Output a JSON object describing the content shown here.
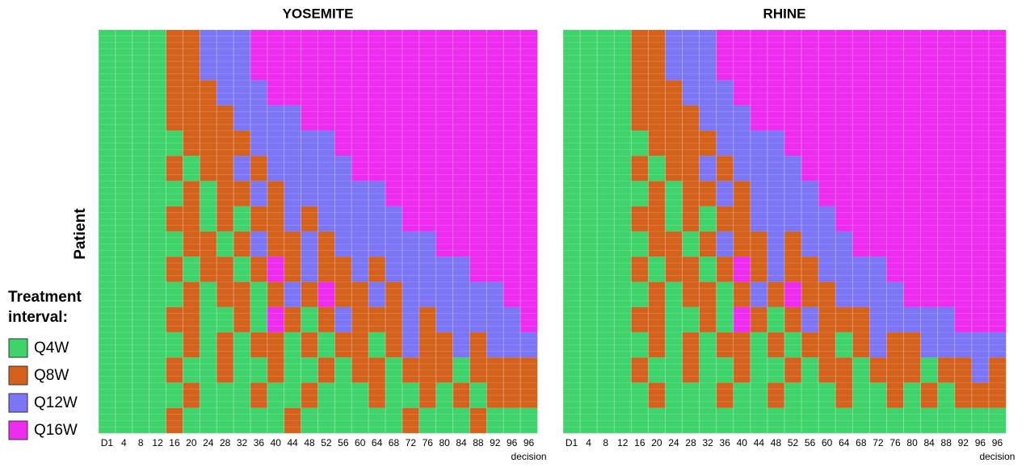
{
  "chart_data": [
    {
      "type": "heatmap",
      "title": "YOSEMITE",
      "y_label": "Patient",
      "x_categories": [
        "D1",
        "4",
        "8",
        "12",
        "16",
        "20",
        "24",
        "28",
        "32",
        "36",
        "40",
        "44",
        "48",
        "52",
        "56",
        "60",
        "64",
        "68",
        "72",
        "76",
        "80",
        "84",
        "88",
        "92",
        "96",
        "96"
      ],
      "x_note": "decision",
      "rows": [
        [
          0,
          0,
          0,
          0,
          1,
          1,
          2,
          2,
          2,
          3,
          3,
          3,
          3,
          3,
          3,
          3,
          3,
          3,
          3,
          3,
          3,
          3,
          3,
          3,
          3,
          3
        ],
        [
          0,
          0,
          0,
          0,
          1,
          1,
          2,
          2,
          2,
          3,
          3,
          3,
          3,
          3,
          3,
          3,
          3,
          3,
          3,
          3,
          3,
          3,
          3,
          3,
          3,
          3
        ],
        [
          0,
          0,
          0,
          0,
          1,
          1,
          1,
          2,
          2,
          2,
          3,
          3,
          3,
          3,
          3,
          3,
          3,
          3,
          3,
          3,
          3,
          3,
          3,
          3,
          3,
          3
        ],
        [
          0,
          0,
          0,
          0,
          1,
          1,
          1,
          1,
          2,
          2,
          2,
          2,
          3,
          3,
          3,
          3,
          3,
          3,
          3,
          3,
          3,
          3,
          3,
          3,
          3,
          3
        ],
        [
          0,
          0,
          0,
          0,
          0,
          1,
          1,
          1,
          1,
          2,
          2,
          2,
          2,
          2,
          3,
          3,
          3,
          3,
          3,
          3,
          3,
          3,
          3,
          3,
          3,
          3
        ],
        [
          0,
          0,
          0,
          0,
          1,
          0,
          1,
          1,
          2,
          1,
          2,
          2,
          2,
          2,
          2,
          3,
          3,
          3,
          3,
          3,
          3,
          3,
          3,
          3,
          3,
          3
        ],
        [
          0,
          0,
          0,
          0,
          0,
          1,
          0,
          1,
          1,
          2,
          1,
          2,
          2,
          2,
          2,
          2,
          2,
          3,
          3,
          3,
          3,
          3,
          3,
          3,
          3,
          3
        ],
        [
          0,
          0,
          0,
          0,
          1,
          1,
          0,
          1,
          0,
          1,
          1,
          2,
          1,
          2,
          2,
          2,
          2,
          2,
          3,
          3,
          3,
          3,
          3,
          3,
          3,
          3
        ],
        [
          0,
          0,
          0,
          0,
          0,
          1,
          1,
          0,
          1,
          2,
          1,
          1,
          2,
          1,
          2,
          2,
          2,
          2,
          2,
          2,
          3,
          3,
          3,
          3,
          3,
          3
        ],
        [
          0,
          0,
          0,
          0,
          1,
          0,
          1,
          1,
          0,
          1,
          3,
          1,
          2,
          1,
          1,
          2,
          1,
          2,
          2,
          2,
          2,
          2,
          3,
          3,
          3,
          3
        ],
        [
          0,
          0,
          0,
          0,
          0,
          1,
          0,
          1,
          1,
          0,
          1,
          2,
          1,
          3,
          1,
          1,
          2,
          1,
          2,
          2,
          2,
          2,
          2,
          2,
          3,
          3
        ],
        [
          0,
          0,
          0,
          0,
          1,
          1,
          0,
          0,
          1,
          0,
          3,
          1,
          0,
          1,
          2,
          1,
          1,
          1,
          2,
          1,
          2,
          2,
          2,
          2,
          2,
          3
        ],
        [
          0,
          0,
          0,
          0,
          0,
          1,
          0,
          1,
          0,
          1,
          1,
          0,
          1,
          0,
          1,
          1,
          0,
          1,
          2,
          1,
          1,
          2,
          1,
          2,
          2,
          2
        ],
        [
          0,
          0,
          0,
          0,
          1,
          0,
          0,
          1,
          0,
          0,
          1,
          0,
          0,
          1,
          0,
          1,
          1,
          0,
          1,
          1,
          1,
          0,
          1,
          1,
          1,
          1
        ],
        [
          0,
          0,
          0,
          0,
          0,
          1,
          0,
          0,
          0,
          1,
          0,
          0,
          1,
          0,
          0,
          0,
          1,
          0,
          0,
          1,
          0,
          1,
          0,
          1,
          1,
          1
        ],
        [
          0,
          0,
          0,
          0,
          1,
          0,
          0,
          0,
          0,
          0,
          0,
          1,
          0,
          0,
          0,
          0,
          0,
          0,
          1,
          0,
          0,
          0,
          1,
          0,
          0,
          0
        ]
      ]
    },
    {
      "type": "heatmap",
      "title": "RHINE",
      "x_categories": [
        "D1",
        "4",
        "8",
        "12",
        "16",
        "20",
        "24",
        "28",
        "32",
        "36",
        "40",
        "44",
        "48",
        "52",
        "56",
        "60",
        "64",
        "68",
        "72",
        "76",
        "80",
        "84",
        "88",
        "92",
        "96",
        "96"
      ],
      "x_note": "decision",
      "rows": [
        [
          0,
          0,
          0,
          0,
          1,
          1,
          2,
          2,
          2,
          3,
          3,
          3,
          3,
          3,
          3,
          3,
          3,
          3,
          3,
          3,
          3,
          3,
          3,
          3,
          3,
          3
        ],
        [
          0,
          0,
          0,
          0,
          1,
          1,
          2,
          2,
          2,
          3,
          3,
          3,
          3,
          3,
          3,
          3,
          3,
          3,
          3,
          3,
          3,
          3,
          3,
          3,
          3,
          3
        ],
        [
          0,
          0,
          0,
          0,
          1,
          1,
          1,
          2,
          2,
          2,
          3,
          3,
          3,
          3,
          3,
          3,
          3,
          3,
          3,
          3,
          3,
          3,
          3,
          3,
          3,
          3
        ],
        [
          0,
          0,
          0,
          0,
          1,
          1,
          1,
          1,
          2,
          2,
          2,
          3,
          3,
          3,
          3,
          3,
          3,
          3,
          3,
          3,
          3,
          3,
          3,
          3,
          3,
          3
        ],
        [
          0,
          0,
          0,
          0,
          0,
          1,
          1,
          1,
          1,
          2,
          2,
          2,
          2,
          3,
          3,
          3,
          3,
          3,
          3,
          3,
          3,
          3,
          3,
          3,
          3,
          3
        ],
        [
          0,
          0,
          0,
          0,
          1,
          0,
          1,
          1,
          2,
          1,
          2,
          2,
          2,
          2,
          3,
          3,
          3,
          3,
          3,
          3,
          3,
          3,
          3,
          3,
          3,
          3
        ],
        [
          0,
          0,
          0,
          0,
          0,
          1,
          0,
          1,
          1,
          2,
          1,
          2,
          2,
          2,
          2,
          3,
          3,
          3,
          3,
          3,
          3,
          3,
          3,
          3,
          3,
          3
        ],
        [
          0,
          0,
          0,
          0,
          1,
          1,
          0,
          1,
          0,
          1,
          1,
          2,
          2,
          2,
          2,
          2,
          3,
          3,
          3,
          3,
          3,
          3,
          3,
          3,
          3,
          3
        ],
        [
          0,
          0,
          0,
          0,
          0,
          1,
          1,
          0,
          1,
          2,
          1,
          1,
          2,
          1,
          2,
          2,
          2,
          3,
          3,
          3,
          3,
          3,
          3,
          3,
          3,
          3
        ],
        [
          0,
          0,
          0,
          0,
          1,
          0,
          1,
          1,
          0,
          1,
          3,
          1,
          2,
          1,
          1,
          2,
          2,
          2,
          2,
          3,
          3,
          3,
          3,
          3,
          3,
          3
        ],
        [
          0,
          0,
          0,
          0,
          0,
          1,
          0,
          1,
          1,
          0,
          1,
          2,
          1,
          3,
          1,
          1,
          2,
          2,
          2,
          2,
          3,
          3,
          3,
          3,
          3,
          3
        ],
        [
          0,
          0,
          0,
          0,
          1,
          1,
          0,
          0,
          1,
          0,
          3,
          1,
          0,
          1,
          2,
          1,
          1,
          1,
          2,
          2,
          2,
          2,
          2,
          3,
          3,
          3
        ],
        [
          0,
          0,
          0,
          0,
          0,
          1,
          0,
          1,
          0,
          1,
          1,
          0,
          1,
          0,
          1,
          1,
          0,
          1,
          2,
          1,
          1,
          2,
          2,
          2,
          2,
          2
        ],
        [
          0,
          0,
          0,
          0,
          1,
          0,
          0,
          1,
          0,
          0,
          1,
          0,
          0,
          1,
          0,
          1,
          1,
          0,
          1,
          1,
          1,
          0,
          1,
          1,
          2,
          1
        ],
        [
          0,
          0,
          0,
          0,
          0,
          1,
          0,
          0,
          0,
          1,
          0,
          0,
          1,
          0,
          0,
          0,
          1,
          0,
          0,
          1,
          0,
          1,
          0,
          1,
          1,
          1
        ],
        [
          0,
          0,
          0,
          0,
          0,
          0,
          0,
          0,
          0,
          0,
          0,
          0,
          0,
          0,
          0,
          0,
          0,
          0,
          0,
          0,
          0,
          0,
          0,
          0,
          0,
          0
        ]
      ]
    }
  ],
  "legend": {
    "title": "Treatment interval:",
    "items": [
      {
        "name": "Q4W",
        "color": "#3fd46b"
      },
      {
        "name": "Q8W",
        "color": "#d4621c"
      },
      {
        "name": "Q12W",
        "color": "#7c76f6"
      },
      {
        "name": "Q16W",
        "color": "#ee2cf0"
      }
    ]
  }
}
